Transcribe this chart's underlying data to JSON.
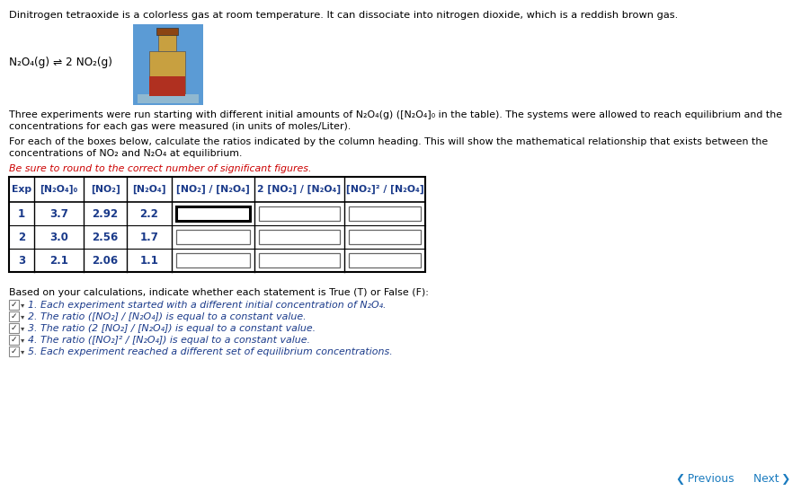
{
  "title_text": "Dinitrogen tetraoxide is a colorless gas at room temperature. It can dissociate into nitrogen dioxide, which is a reddish brown gas.",
  "para1_line1": "Three experiments were run starting with different initial amounts of N₂O₄(g) ([N₂O₄]₀ in the table). The systems were allowed to reach equilibrium and the",
  "para1_line2": "concentrations for each gas were measured (in units of moles/Liter).",
  "para2_line1": "For each of the boxes below, calculate the ratios indicated by the column heading. This will show the mathematical relationship that exists between the",
  "para2_line2": "concentrations of NO₂ and N₂O₄ at equilibrium.",
  "red_text": "Be sure to round to the correct number of significant figures.",
  "col_headers": [
    "Exp",
    "[N₂O₄]₀",
    "[NO₂]",
    "[N₂O₄]",
    "[NO₂] / [N₂O₄]",
    "2 [NO₂] / [N₂O₄]",
    "[NO₂]² / [N₂O₄]"
  ],
  "rows": [
    [
      "1",
      "3.7",
      "2.92",
      "2.2",
      "",
      "",
      ""
    ],
    [
      "2",
      "3.0",
      "2.56",
      "1.7",
      "",
      "",
      ""
    ],
    [
      "3",
      "2.1",
      "2.06",
      "1.1",
      "",
      "",
      ""
    ]
  ],
  "based_text": "Based on your calculations, indicate whether each statement is True (T) or False (F):",
  "statements": [
    "1. Each experiment started with a different initial concentration of N₂O₄.",
    "2. The ratio ([NO₂] / [N₂O₄]) is equal to a constant value.",
    "3. The ratio (2 [NO₂] / [N₂O₄]) is equal to a constant value.",
    "4. The ratio ([NO₂]² / [N₂O₄]) is equal to a constant value.",
    "5. Each experiment reached a different set of equilibrium concentrations."
  ],
  "bg_color": "#ffffff",
  "text_color": "#000000",
  "blue_color": "#1a3a8a",
  "red_color": "#cc0000",
  "nav_color": "#1a7bbf",
  "fig_width": 9.01,
  "fig_height": 5.47
}
